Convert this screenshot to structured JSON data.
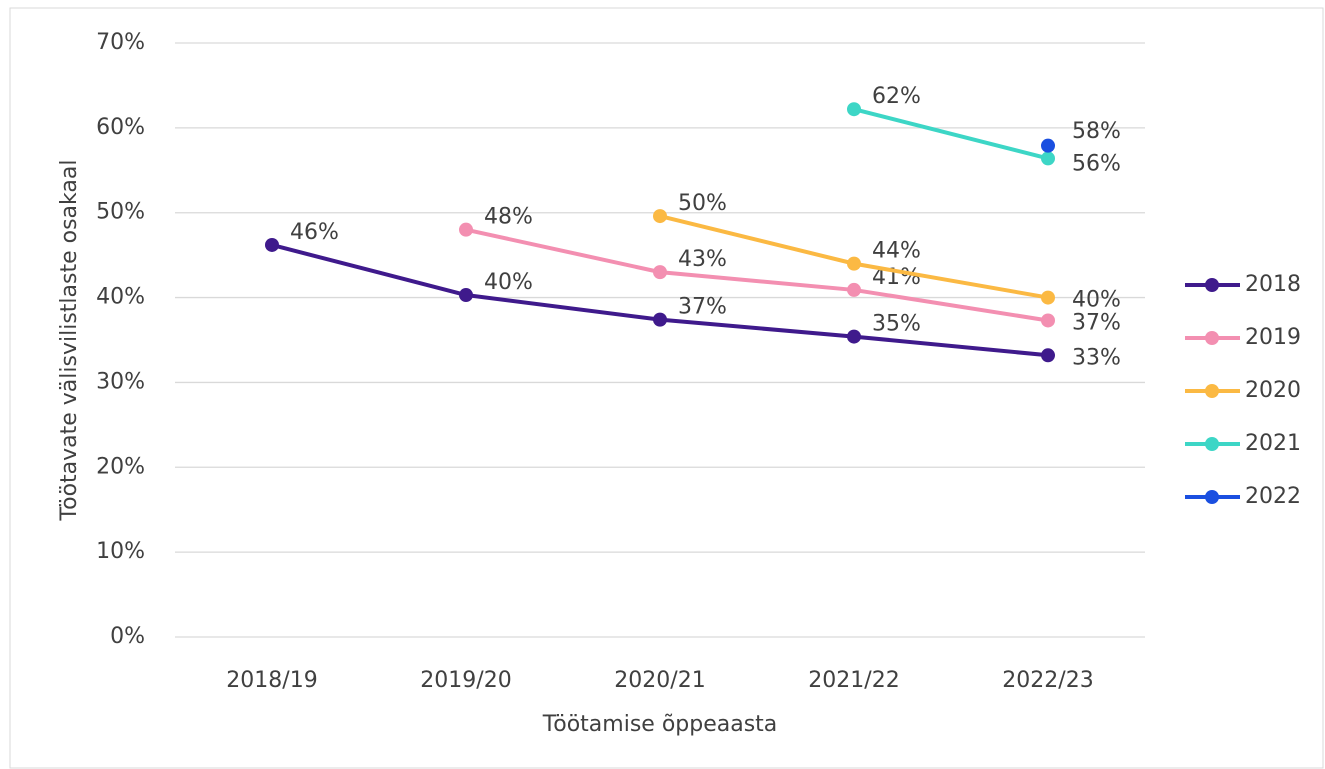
{
  "chart_data": {
    "type": "line",
    "x_label": "Töötamise õppeaasta",
    "y_label": "Töötavate välisvilistlaste osakaal",
    "categories": [
      "2018/19",
      "2019/20",
      "2020/21",
      "2021/22",
      "2022/23"
    ],
    "ylim": [
      0,
      70
    ],
    "yticks": [
      {
        "value": 0,
        "label": "0%"
      },
      {
        "value": 10,
        "label": "10%"
      },
      {
        "value": 20,
        "label": "20%"
      },
      {
        "value": 30,
        "label": "30%"
      },
      {
        "value": 40,
        "label": "40%"
      },
      {
        "value": 50,
        "label": "50%"
      },
      {
        "value": 60,
        "label": "60%"
      },
      {
        "value": 70,
        "label": "70%"
      }
    ],
    "grid": true,
    "legend": "right",
    "series": [
      {
        "name": "2018",
        "color": "#3f1a8c",
        "values": [
          46.2,
          40.3,
          37.4,
          35.4,
          33.2
        ],
        "value_labels": [
          "46%",
          "40%",
          "37%",
          "35%",
          "33%"
        ]
      },
      {
        "name": "2019",
        "color": "#f38fb1",
        "values": [
          null,
          48,
          43,
          40.9,
          37.3
        ],
        "value_labels": [
          null,
          "48%",
          "43%",
          "41%",
          "37%"
        ]
      },
      {
        "name": "2020",
        "color": "#fbb943",
        "values": [
          null,
          null,
          49.6,
          44,
          40
        ],
        "value_labels": [
          null,
          null,
          "50%",
          "44%",
          "40%"
        ]
      },
      {
        "name": "2021",
        "color": "#3dd6c6",
        "values": [
          null,
          null,
          null,
          62.2,
          56.4
        ],
        "value_labels": [
          null,
          null,
          null,
          "62%",
          "56%"
        ]
      },
      {
        "name": "2022",
        "color": "#1a4fe0",
        "values": [
          null,
          null,
          null,
          null,
          57.9
        ],
        "value_labels": [
          null,
          null,
          null,
          null,
          "58%"
        ]
      }
    ]
  }
}
